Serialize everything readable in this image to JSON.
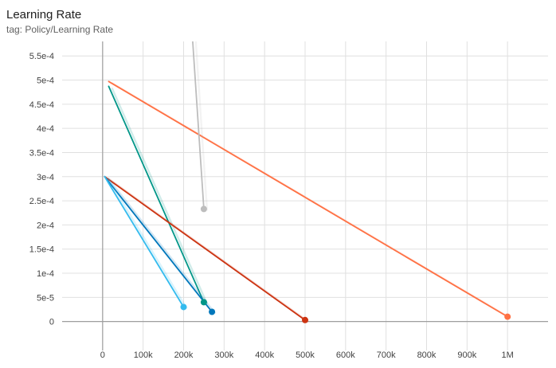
{
  "header": {
    "title": "Learning Rate",
    "tag": "tag: Policy/Learning Rate"
  },
  "chart_data": {
    "type": "line",
    "title": "Learning Rate",
    "subtitle": "tag: Policy/Learning Rate",
    "xlabel": "",
    "ylabel": "",
    "xlim": [
      -100000,
      1100000
    ],
    "ylim": [
      -6e-05,
      0.00058
    ],
    "x_ticks": [
      0,
      100000,
      200000,
      300000,
      400000,
      500000,
      600000,
      700000,
      800000,
      900000,
      1000000
    ],
    "x_tick_labels": [
      "0",
      "100k",
      "200k",
      "300k",
      "400k",
      "500k",
      "600k",
      "700k",
      "800k",
      "900k",
      "1M"
    ],
    "y_ticks": [
      0,
      5e-05,
      0.0001,
      0.00015,
      0.0002,
      0.00025,
      0.0003,
      0.00035,
      0.0004,
      0.00045,
      0.0005,
      0.00055
    ],
    "y_tick_labels": [
      "0",
      "5e-5",
      "1e-4",
      "1.5e-4",
      "2e-4",
      "2.5e-4",
      "3e-4",
      "3.5e-4",
      "4e-4",
      "4.5e-4",
      "5e-4",
      "5.5e-4"
    ],
    "grid": true,
    "series": [
      {
        "color": "#ff7043",
        "x": [
          15000,
          1000000
        ],
        "y": [
          0.000497,
          1e-05
        ],
        "end_marker": true
      },
      {
        "color": "#bdbdbd",
        "x": [
          205000,
          250000
        ],
        "y": [
          0.0008,
          0.000233
        ],
        "end_marker": true
      },
      {
        "color": "#009688",
        "x": [
          15000,
          250000
        ],
        "y": [
          0.000487,
          4e-05
        ],
        "end_marker": true
      },
      {
        "color": "#cc3311",
        "x": [
          5000,
          500000
        ],
        "y": [
          0.0003,
          3e-06
        ],
        "end_marker": true
      },
      {
        "color": "#0077bb",
        "x": [
          5000,
          270000
        ],
        "y": [
          0.0003,
          2e-05
        ],
        "end_marker": true
      },
      {
        "color": "#33bbee",
        "x": [
          5000,
          200000
        ],
        "y": [
          0.0003,
          3e-05
        ],
        "end_marker": true
      }
    ]
  }
}
